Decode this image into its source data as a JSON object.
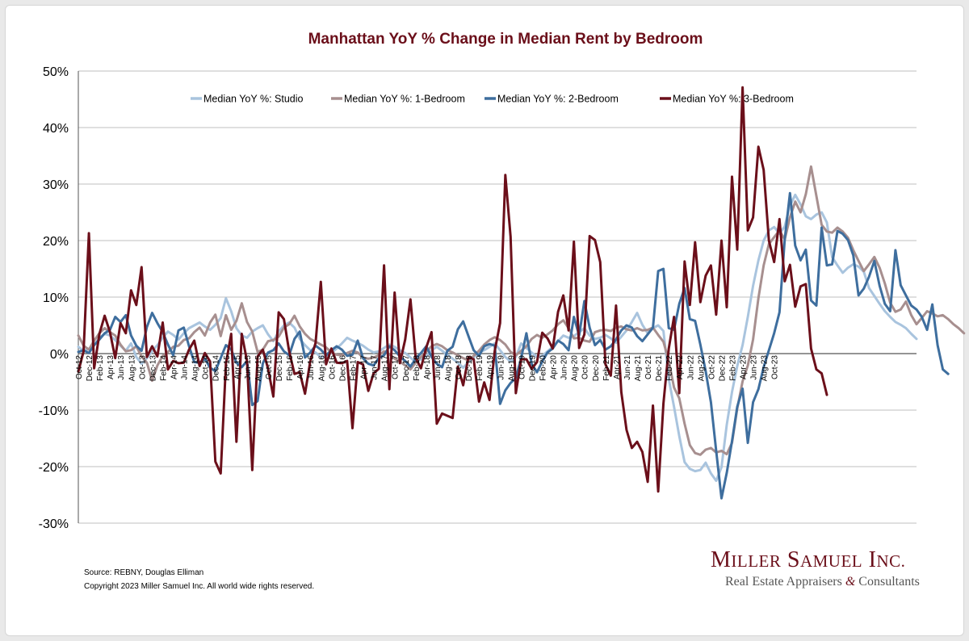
{
  "footer": {
    "source": "Source: REBNY, Douglas Elliman",
    "copyright": "Copyright 2023 Miller Samuel Inc.  All world wide rights reserved."
  },
  "logo": {
    "name_first": "M",
    "name_first_rest": "ILLER",
    "name_second": "S",
    "name_second_rest": "AMUEL",
    "name_third": "I",
    "name_third_rest": "NC.",
    "tagline_a": "Real Estate Appraisers",
    "tagline_amp": "&",
    "tagline_b": "Consultants"
  },
  "chart_data": {
    "type": "line",
    "title": "Manhattan YoY % Change in Median Rent by Bedroom",
    "xlabel": "",
    "ylabel": "",
    "ylim": [
      -30,
      50
    ],
    "yticks": [
      -30,
      -20,
      -10,
      0,
      10,
      20,
      30,
      40,
      50
    ],
    "ytick_labels": [
      "-30%",
      "-20%",
      "-10%",
      "0%",
      "10%",
      "20%",
      "30%",
      "40%",
      "50%"
    ],
    "grid": true,
    "legend_position": "top",
    "x_start": "Oct-12",
    "x_end": "Oct-23",
    "x_tick_labels": [
      "Oct-12",
      "Dec-12",
      "Feb-13",
      "Apr-13",
      "Jun-13",
      "Aug-13",
      "Oct-13",
      "Dec-13",
      "Feb-14",
      "Apr-14",
      "Jun-14",
      "Aug-14",
      "Oct-14",
      "Dec-14",
      "Feb-15",
      "Apr-15",
      "Jun-15",
      "Aug-15",
      "Oct-15",
      "Dec-15",
      "Feb-16",
      "Apr-16",
      "Jun-16",
      "Aug-16",
      "Oct-16",
      "Dec-16",
      "Feb-17",
      "Apr-17",
      "Jun-17",
      "Aug-17",
      "Oct-17",
      "Dec-17",
      "Feb-18",
      "Apr-18",
      "Jun-18",
      "Aug-18",
      "Oct-18",
      "Dec-18",
      "Feb-19",
      "Apr-19",
      "Jun-19",
      "Aug-19",
      "Oct-19",
      "Dec-19",
      "Feb-20",
      "Apr-20",
      "Jun-20",
      "Aug-20",
      "Oct-20",
      "Dec-20",
      "Feb-21",
      "Apr-21",
      "Jun-21",
      "Aug-21",
      "Oct-21",
      "Dec-21",
      "Feb-22",
      "Apr-22",
      "Jun-22",
      "Aug-22",
      "Oct-22",
      "Dec-22",
      "Feb-23",
      "Apr-23",
      "Jun-23",
      "Aug-23",
      "Oct-23"
    ],
    "series": [
      {
        "name": "Median YoY %: Studio",
        "color": "#a9c4de",
        "values": [
          1.2,
          0.5,
          0.8,
          1.5,
          2.8,
          3.5,
          3.2,
          2.4,
          1.4,
          0.5,
          1.8,
          -0.6,
          -1.8,
          -0.8,
          0.4,
          1.5,
          2.8,
          3.9,
          3.3,
          2.5,
          3.6,
          4.5,
          5,
          5.5,
          4.8,
          4.2,
          5.1,
          6.3,
          9.8,
          7.5,
          4.5,
          3.2,
          2.8,
          3.9,
          4.5,
          5,
          3.4,
          2.2,
          3.9,
          5,
          5.5,
          4.6,
          2.6,
          1.5,
          0.6,
          0.2,
          -0.6,
          -0.5,
          0.1,
          0.9,
          1.8,
          2.8,
          2.3,
          1.9,
          1.4,
          0.7,
          0.2,
          0.4,
          1,
          1.6,
          1.2,
          0.6,
          0.1,
          -0.7,
          -1.5,
          -1,
          -0.5,
          0.6,
          1.2,
          0.5,
          -0.2,
          -0.9,
          -1.6,
          -2.5,
          -1.5,
          -0.7,
          0.2,
          0.6,
          1.2,
          1.8,
          0.6,
          -0.6,
          -1.4,
          -0.6,
          1.8,
          1,
          0.2,
          -0.6,
          -0.4,
          0.4,
          1.2,
          2.2,
          3.2,
          2.8,
          3.1,
          3.8,
          4.5,
          3.2,
          2.6,
          2.8,
          3.3,
          2.7,
          1.9,
          3,
          4.1,
          5.6,
          7.2,
          5.1,
          3.6,
          4.5,
          5,
          4,
          -4.5,
          -9.4,
          -14.6,
          -19.2,
          -20.4,
          -20.8,
          -20.6,
          -19.3,
          -21.2,
          -22.5,
          -20.1,
          -12.6,
          -6.8,
          -2.2,
          1.5,
          6.5,
          12,
          16.5,
          20,
          21.8,
          22.4,
          21.2,
          22.5,
          26.2,
          28.1,
          26.4,
          24.3,
          23.8,
          24.6,
          25,
          23.2,
          17.1,
          15.6,
          14.3,
          15.2,
          15.8,
          15.4,
          14.5,
          11.6,
          10.2,
          8.8,
          7.5,
          6.5,
          5.6,
          5.1,
          4.5,
          3.5,
          2.6
        ]
      },
      {
        "name": "Median YoY %: 1-Bedroom",
        "color": "#a78f8f",
        "values": [
          3.2,
          1.4,
          0.7,
          2.3,
          3.6,
          4.5,
          3.8,
          3.2,
          1.6,
          0.4,
          0.6,
          1.3,
          -0.5,
          -1.6,
          -4.8,
          -2.1,
          -0.4,
          0.3,
          1.2,
          1.4,
          2.4,
          2.7,
          3.8,
          4.6,
          3.2,
          5.5,
          6.9,
          3.1,
          6.8,
          4.2,
          5.8,
          8.9,
          5.6,
          3.9,
          0.3,
          0.7,
          2.2,
          2.4,
          3,
          4.6,
          5.2,
          6.7,
          4.8,
          3.5,
          2.6,
          2.1,
          1.6,
          1.1,
          0.2,
          -0.2,
          -0.3,
          0.1,
          0.5,
          0.2,
          -0.7,
          -0.9,
          -0.7,
          -0.3,
          0.4,
          -0.1,
          -0.9,
          -1.4,
          -2.1,
          -2.8,
          -1.6,
          -0.6,
          0.3,
          1.3,
          1.7,
          1.3,
          0.6,
          0.2,
          -0.3,
          -0.8,
          -1.2,
          -0.4,
          0.5,
          1.6,
          2.4,
          2.9,
          2.4,
          1.6,
          0.3,
          -0.3,
          0.5,
          1.3,
          2.6,
          3.3,
          2.8,
          3.4,
          4.1,
          5.2,
          5.9,
          4.5,
          2.7,
          2.8,
          2.3,
          2.1,
          3.8,
          4.1,
          4.2,
          4,
          4.6,
          4.8,
          4.3,
          4.1,
          4.5,
          4.1,
          4.2,
          4.6,
          3.3,
          2.1,
          -1.3,
          -6,
          -7.9,
          -12.4,
          -16.2,
          -17.6,
          -17.9,
          -17,
          -16.7,
          -17.5,
          -17.2,
          -17.8,
          -15.8,
          -9.7,
          -4.9,
          -2.1,
          2.5,
          9.8,
          15.6,
          19.4,
          20.6,
          21.8,
          20.2,
          24.1,
          26.9,
          25,
          28.2,
          33.1,
          27.9,
          22.8,
          21.6,
          21.4,
          22.3,
          21.6,
          20.5,
          18.3,
          16.4,
          14.6,
          15.8,
          17.1,
          15.2,
          12.4,
          9,
          7.4,
          7.8,
          9.2,
          6.8,
          5.2,
          6.3,
          7.5,
          7.1,
          6.6,
          6.8,
          6.1,
          5.2,
          4.5,
          3.6
        ]
      },
      {
        "name": "Median YoY %: 2-Bedroom",
        "color": "#3e6e9e",
        "values": [
          0.3,
          0.6,
          0.1,
          1.5,
          2.5,
          3.6,
          4.2,
          6.5,
          5.6,
          6.8,
          3.2,
          1.4,
          0.5,
          4.7,
          7.2,
          5.4,
          3.8,
          1.6,
          -0.3,
          4.1,
          4.6,
          1.3,
          -1.5,
          -1.6,
          -0.9,
          -2.5,
          -3.1,
          -0.8,
          1.5,
          0.7,
          -1.6,
          -2.4,
          -1.3,
          -9.1,
          -8.4,
          -1.7,
          0.2,
          0.6,
          1.8,
          0.4,
          -0.3,
          2.6,
          3.9,
          -0.7,
          0.2,
          1.4,
          0.7,
          -0.3,
          0.6,
          1.3,
          0.7,
          -0.4,
          -0.2,
          2.3,
          -0.8,
          -1.8,
          -2.1,
          -0.8,
          -0.3,
          1.3,
          0.6,
          -0.5,
          -1.3,
          -2.3,
          -0.9,
          0.1,
          1.3,
          -0.6,
          -1.8,
          -2.4,
          0.5,
          1.2,
          4.3,
          5.7,
          3.1,
          0.6,
          -0.4,
          1.3,
          1.7,
          1.4,
          -8.9,
          -6.5,
          -5.2,
          -4.3,
          -0.8,
          3.6,
          -1.8,
          -3.3,
          -1.4,
          0.2,
          0.9,
          2.3,
          1.7,
          0.6,
          6.5,
          3.2,
          9.3,
          4.6,
          1.5,
          2.4,
          0.7,
          1.3,
          2.5,
          4.1,
          5,
          4.6,
          3.1,
          2.2,
          3.4,
          4.6,
          14.6,
          15,
          4.5,
          4.2,
          8.8,
          11.6,
          6.1,
          5.8,
          1.6,
          -3.1,
          -8.6,
          -17.2,
          -25.6,
          -21.1,
          -15.5,
          -9.4,
          -6.2,
          -15.8,
          -8.6,
          -6.3,
          -2.4,
          0.6,
          3.6,
          7.3,
          20.2,
          28.4,
          19.1,
          16.5,
          18.4,
          9.4,
          8.5,
          22.3,
          15.6,
          15.8,
          21.7,
          21.2,
          20.1,
          17.4,
          10.3,
          11.5,
          13.6,
          16.4,
          12,
          8.8,
          7.5,
          18.3,
          12.1,
          10.3,
          8.5,
          7.8,
          6.5,
          4.2,
          8.7,
          1.5,
          -2.8,
          -3.6
        ]
      },
      {
        "name": "Median YoY %: 3-Bedroom",
        "color": "#6b0f1a",
        "values": [
          -3.2,
          0.4,
          21.3,
          -2.6,
          3.5,
          6.7,
          3.8,
          -0.8,
          5.4,
          3.6,
          11.2,
          8.6,
          15.3,
          -0.6,
          1.3,
          -0.5,
          5.5,
          -2.8,
          -1.3,
          -1.7,
          -1.6,
          0.7,
          2.3,
          -2.2,
          0.1,
          -1.4,
          -19.1,
          -21.2,
          -1.8,
          3.5,
          -15.6,
          3.5,
          -1.3,
          -20.6,
          -0.5,
          0.7,
          -2.7,
          -7.6,
          7.3,
          6.1,
          0.4,
          -3.6,
          -3.3,
          -7.1,
          -1.4,
          1.9,
          12.7,
          -1.9,
          0.9,
          -1.6,
          -1.7,
          -1.3,
          -13.2,
          -1.5,
          -1.9,
          -6.6,
          -3.5,
          -2.7,
          15.6,
          -6.3,
          10.8,
          -1.7,
          2.5,
          9.6,
          -0.8,
          -2.6,
          1.1,
          3.8,
          -12.4,
          -10.6,
          -11,
          -11.4,
          -2.3,
          -5.6,
          -0.6,
          -1,
          -8.5,
          -5.1,
          -8.2,
          0.5,
          5.4,
          31.6,
          20.7,
          -7,
          -1,
          -1,
          -2.7,
          -1.5,
          3.7,
          2.7,
          0.9,
          7.4,
          10.3,
          4.1,
          19.8,
          1,
          3.4,
          20.8,
          20.1,
          16.2,
          -1.9,
          -3.9,
          8.5,
          -6.8,
          -13.5,
          -16.7,
          -15.6,
          -17.4,
          -22.7,
          -9.2,
          -24.4,
          -8.8,
          0.9,
          6.5,
          -7,
          16.3,
          8.6,
          19.7,
          9.1,
          13.8,
          15.6,
          6.9,
          20,
          8.2,
          31.3,
          18.4,
          47.1,
          21.8,
          24.1,
          36.6,
          32.5,
          20,
          16.2,
          23.8,
          12.8,
          15.7,
          8.3,
          11.9,
          12.3,
          0.9,
          -2.8,
          -3.5,
          -7.3
        ]
      }
    ]
  }
}
